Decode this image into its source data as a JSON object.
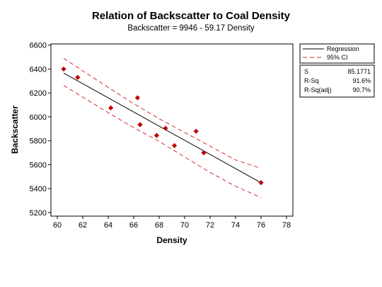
{
  "chart_data": {
    "type": "scatter",
    "title": "Relation of Backscatter to Coal Density",
    "subtitle": "Backscatter  =  9946 - 59.17 Density",
    "xlabel": "Density",
    "ylabel": "Backscatter",
    "xlim": [
      59.5,
      78.5
    ],
    "ylim": [
      5170,
      6610
    ],
    "x_ticks": [
      60,
      62,
      64,
      66,
      68,
      70,
      72,
      74,
      76,
      78
    ],
    "y_ticks": [
      5200,
      5400,
      5600,
      5800,
      6000,
      6200,
      6400,
      6600
    ],
    "grid": false,
    "points": {
      "color": "#c00000",
      "x": [
        60.5,
        61.6,
        64.2,
        66.3,
        66.5,
        67.8,
        68.5,
        69.2,
        70.9,
        71.5,
        76.0
      ],
      "y": [
        6400,
        6330,
        6075,
        6160,
        5935,
        5845,
        5905,
        5760,
        5880,
        5700,
        5450
      ]
    },
    "regression": {
      "name": "Regression",
      "intercept": 9946,
      "slope": -59.17,
      "x_range": [
        60.5,
        76.0
      ],
      "color": "#000000"
    },
    "ci": {
      "name": "95% CI",
      "color": "#d03030",
      "upper": [
        [
          60.5,
          6490
        ],
        [
          62,
          6385
        ],
        [
          64,
          6246
        ],
        [
          66,
          6110
        ],
        [
          68,
          5985
        ],
        [
          70,
          5870
        ],
        [
          72,
          5755
        ],
        [
          74,
          5640
        ],
        [
          76,
          5570
        ]
      ],
      "lower": [
        [
          60.5,
          6262
        ],
        [
          62,
          6165
        ],
        [
          64,
          6035
        ],
        [
          66,
          5910
        ],
        [
          68,
          5795
        ],
        [
          70,
          5665
        ],
        [
          72,
          5535
        ],
        [
          74,
          5420
        ],
        [
          76,
          5325
        ]
      ]
    },
    "legend": {
      "position": "right",
      "entries": [
        "Regression",
        "95% CI"
      ]
    },
    "stats": [
      {
        "label": "S",
        "value": "85.1771"
      },
      {
        "label": "R-Sq",
        "value": "91.6%"
      },
      {
        "label": "R-Sq(adj)",
        "value": "90.7%"
      }
    ]
  }
}
